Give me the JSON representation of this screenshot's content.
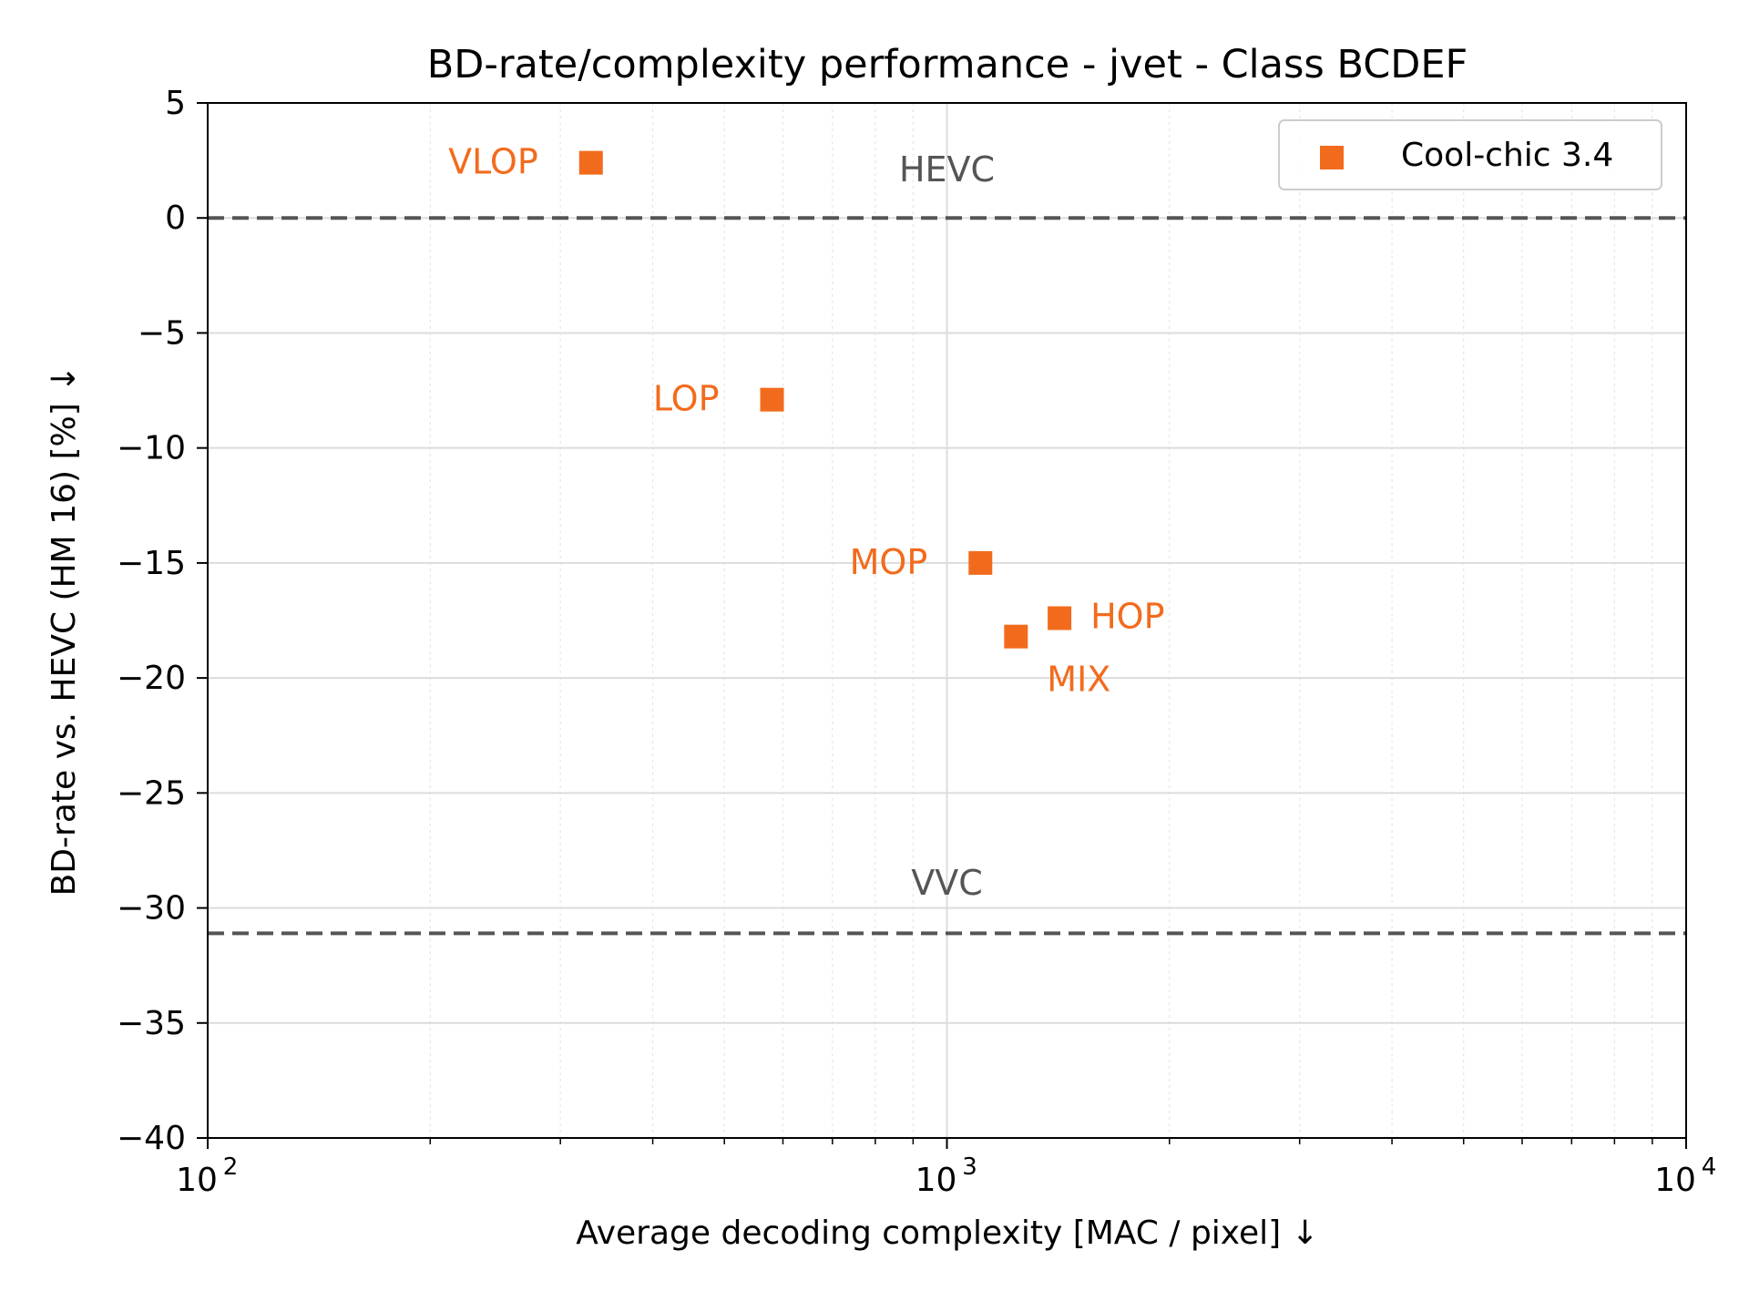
{
  "chart_data": {
    "type": "scatter",
    "title": "BD-rate/complexity performance - jvet - Class BCDEF",
    "xlabel": "Average decoding complexity [MAC / pixel]  ↓",
    "ylabel": "BD-rate vs. HEVC (HM 16) [%]  ↓",
    "xscale": "log",
    "xlim": [
      100,
      10000
    ],
    "ylim": [
      -40,
      5
    ],
    "x_ticks": [
      {
        "value": 100,
        "base": "10",
        "exp": "2"
      },
      {
        "value": 1000,
        "base": "10",
        "exp": "3"
      },
      {
        "value": 10000,
        "base": "10",
        "exp": "4"
      }
    ],
    "y_ticks": [
      {
        "value": 5,
        "label": "5"
      },
      {
        "value": 0,
        "label": "0"
      },
      {
        "value": -5,
        "label": "−5"
      },
      {
        "value": -10,
        "label": "−10"
      },
      {
        "value": -15,
        "label": "−15"
      },
      {
        "value": -20,
        "label": "−20"
      },
      {
        "value": -25,
        "label": "−25"
      },
      {
        "value": -30,
        "label": "−30"
      },
      {
        "value": -35,
        "label": "−35"
      },
      {
        "value": -40,
        "label": "−40"
      }
    ],
    "grid": true,
    "legend_position": "top-right",
    "series": [
      {
        "name": "Cool-chic 3.4",
        "color": "#F26B1D",
        "marker": "square",
        "points": [
          {
            "label": "VLOP",
            "x": 330,
            "y": 2.4,
            "label_side": "left"
          },
          {
            "label": "LOP",
            "x": 580,
            "y": -7.9,
            "label_side": "left"
          },
          {
            "label": "MOP",
            "x": 1110,
            "y": -15.0,
            "label_side": "left"
          },
          {
            "label": "HOP",
            "x": 1420,
            "y": -17.4,
            "label_side": "right"
          },
          {
            "label": "MIX",
            "x": 1240,
            "y": -18.2,
            "label_side": "below-right"
          }
        ]
      }
    ],
    "reference_lines": [
      {
        "label": "HEVC",
        "y": 0,
        "color": "#555555",
        "style": "dashed"
      },
      {
        "label": "VVC",
        "y": -31.1,
        "color": "#555555",
        "style": "dashed"
      }
    ]
  }
}
